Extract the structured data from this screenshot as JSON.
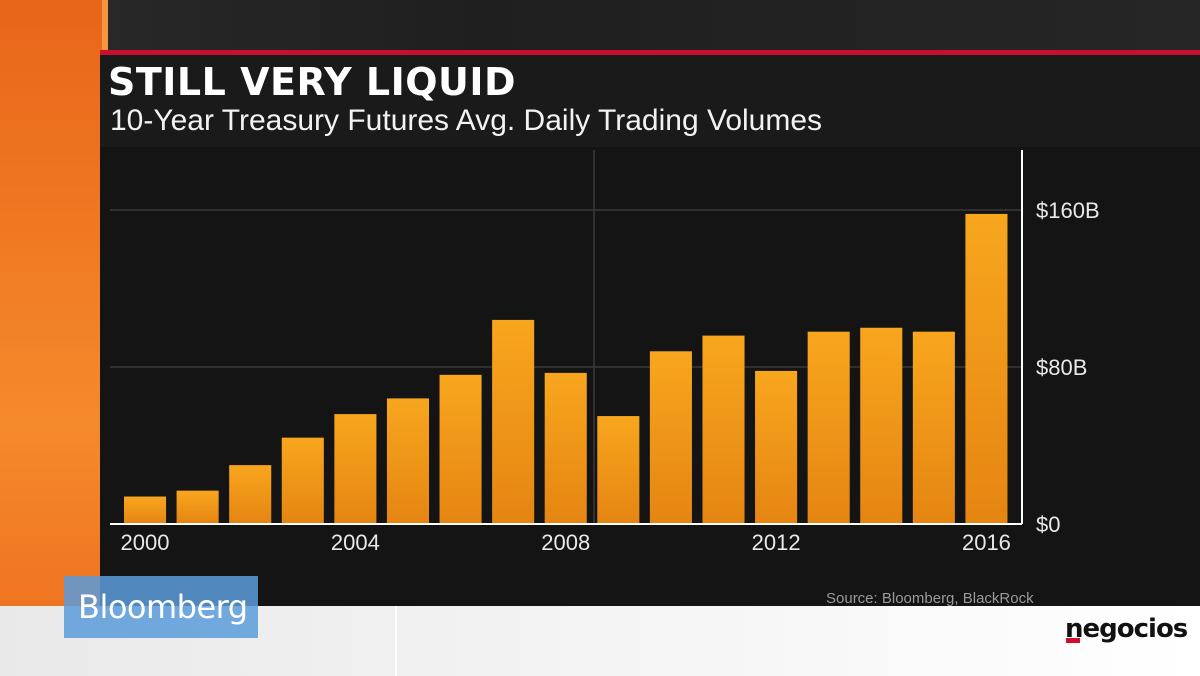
{
  "header": {
    "title": "STILL VERY LIQUID",
    "subtitle": "10-Year Treasury Futures Avg. Daily Trading Volumes"
  },
  "chart_data": {
    "type": "bar",
    "title": "STILL VERY LIQUID",
    "subtitle": "10-Year Treasury Futures Avg. Daily Trading Volumes",
    "xlabel": "",
    "ylabel": "",
    "categories": [
      "2000",
      "2001",
      "2002",
      "2003",
      "2004",
      "2005",
      "2006",
      "2007",
      "2008",
      "2009",
      "2010",
      "2011",
      "2012",
      "2013",
      "2014",
      "2015",
      "2016"
    ],
    "values": [
      14,
      17,
      30,
      44,
      56,
      64,
      76,
      104,
      77,
      55,
      88,
      96,
      78,
      98,
      100,
      98,
      158
    ],
    "x_tick_labels": [
      "2000",
      "2004",
      "2008",
      "2012",
      "2016"
    ],
    "y_ticks": [
      0,
      80,
      160
    ],
    "y_tick_labels": [
      "$0",
      "$80B",
      "$160B"
    ],
    "ylim": [
      0,
      168
    ],
    "y_axis_side": "right",
    "grid": true,
    "bar_color": "#f39a1c"
  },
  "footer": {
    "source": "Source: Bloomberg, BlackRock",
    "network_logo": "Bloomberg",
    "site_logo": "negocios"
  },
  "colors": {
    "accent_red": "#c8102e",
    "bar": "#f39a1c",
    "background": "#141414"
  }
}
